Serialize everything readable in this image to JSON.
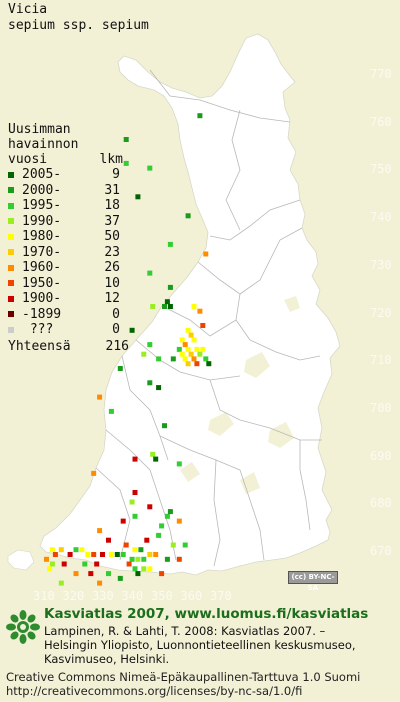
{
  "species": {
    "genus": "Vicia",
    "name": "sepium ssp. sepium"
  },
  "legend": {
    "title_lines": [
      "Uusimman",
      "havainnon"
    ],
    "col_year": "vuosi",
    "col_count": "lkm",
    "rows": [
      {
        "label": "2005-",
        "count": "9",
        "color": "#006400"
      },
      {
        "label": "2000-",
        "count": "31",
        "color": "#1a9b1a"
      },
      {
        "label": "1995-",
        "count": "18",
        "color": "#33cc33"
      },
      {
        "label": "1990-",
        "count": "37",
        "color": "#99ee22"
      },
      {
        "label": "1980-",
        "count": "50",
        "color": "#ffff00"
      },
      {
        "label": "1970-",
        "count": "23",
        "color": "#ffcc00"
      },
      {
        "label": "1960-",
        "count": "26",
        "color": "#ff8c00"
      },
      {
        "label": "1950-",
        "count": "10",
        "color": "#ee4400"
      },
      {
        "label": "1900-",
        "count": "12",
        "color": "#cc0000"
      },
      {
        "label": "-1899",
        "count": "0",
        "color": "#660000"
      },
      {
        "label": " ???",
        "count": "0",
        "color": "#cccccc"
      }
    ],
    "total_label": "Yhteensä",
    "total_count": "216"
  },
  "axes": {
    "y_ticks": [
      "770",
      "760",
      "750",
      "740",
      "730",
      "720",
      "710",
      "700",
      "690",
      "680",
      "670"
    ],
    "x_ticks": [
      "310",
      "320",
      "330",
      "340",
      "350",
      "360",
      "370"
    ]
  },
  "grid_squares": {
    "units": "10 km grid cells (N 670-770, E 310-370)",
    "observations": [
      {
        "e": 362,
        "n": 762,
        "cat": 1
      },
      {
        "e": 337,
        "n": 757,
        "cat": 1
      },
      {
        "e": 337,
        "n": 752,
        "cat": 2
      },
      {
        "e": 345,
        "n": 751,
        "cat": 2
      },
      {
        "e": 341,
        "n": 745,
        "cat": 0
      },
      {
        "e": 358,
        "n": 741,
        "cat": 1
      },
      {
        "e": 352,
        "n": 735,
        "cat": 2
      },
      {
        "e": 364,
        "n": 733,
        "cat": 6
      },
      {
        "e": 345,
        "n": 729,
        "cat": 2
      },
      {
        "e": 352,
        "n": 726,
        "cat": 1
      },
      {
        "e": 351,
        "n": 723,
        "cat": 0
      },
      {
        "e": 350,
        "n": 722,
        "cat": 1
      },
      {
        "e": 352,
        "n": 722,
        "cat": 0
      },
      {
        "e": 346,
        "n": 722,
        "cat": 3
      },
      {
        "e": 360,
        "n": 722,
        "cat": 4
      },
      {
        "e": 362,
        "n": 721,
        "cat": 6
      },
      {
        "e": 363,
        "n": 718,
        "cat": 7
      },
      {
        "e": 358,
        "n": 717,
        "cat": 4
      },
      {
        "e": 359,
        "n": 716,
        "cat": 5
      },
      {
        "e": 360,
        "n": 715,
        "cat": 4
      },
      {
        "e": 356,
        "n": 715,
        "cat": 4
      },
      {
        "e": 357,
        "n": 714,
        "cat": 6
      },
      {
        "e": 355,
        "n": 713,
        "cat": 2
      },
      {
        "e": 358,
        "n": 713,
        "cat": 4
      },
      {
        "e": 361,
        "n": 713,
        "cat": 4
      },
      {
        "e": 363,
        "n": 713,
        "cat": 4
      },
      {
        "e": 356,
        "n": 712,
        "cat": 4
      },
      {
        "e": 359,
        "n": 712,
        "cat": 5
      },
      {
        "e": 362,
        "n": 712,
        "cat": 3
      },
      {
        "e": 357,
        "n": 711,
        "cat": 4
      },
      {
        "e": 360,
        "n": 711,
        "cat": 6
      },
      {
        "e": 364,
        "n": 711,
        "cat": 2
      },
      {
        "e": 353,
        "n": 711,
        "cat": 1
      },
      {
        "e": 358,
        "n": 710,
        "cat": 5
      },
      {
        "e": 361,
        "n": 710,
        "cat": 7
      },
      {
        "e": 365,
        "n": 710,
        "cat": 0
      },
      {
        "e": 339,
        "n": 717,
        "cat": 0
      },
      {
        "e": 345,
        "n": 714,
        "cat": 2
      },
      {
        "e": 343,
        "n": 712,
        "cat": 3
      },
      {
        "e": 348,
        "n": 711,
        "cat": 2
      },
      {
        "e": 335,
        "n": 709,
        "cat": 1
      },
      {
        "e": 345,
        "n": 706,
        "cat": 1
      },
      {
        "e": 348,
        "n": 705,
        "cat": 0
      },
      {
        "e": 328,
        "n": 703,
        "cat": 6
      },
      {
        "e": 332,
        "n": 700,
        "cat": 2
      },
      {
        "e": 350,
        "n": 697,
        "cat": 1
      },
      {
        "e": 346,
        "n": 691,
        "cat": 3
      },
      {
        "e": 347,
        "n": 690,
        "cat": 0
      },
      {
        "e": 340,
        "n": 690,
        "cat": 8
      },
      {
        "e": 355,
        "n": 689,
        "cat": 2
      },
      {
        "e": 326,
        "n": 687,
        "cat": 6
      },
      {
        "e": 340,
        "n": 683,
        "cat": 8
      },
      {
        "e": 339,
        "n": 681,
        "cat": 3
      },
      {
        "e": 345,
        "n": 680,
        "cat": 8
      },
      {
        "e": 351,
        "n": 678,
        "cat": 2
      },
      {
        "e": 352,
        "n": 679,
        "cat": 1
      },
      {
        "e": 340,
        "n": 678,
        "cat": 2
      },
      {
        "e": 349,
        "n": 676,
        "cat": 2
      },
      {
        "e": 355,
        "n": 677,
        "cat": 6
      },
      {
        "e": 336,
        "n": 677,
        "cat": 8
      },
      {
        "e": 328,
        "n": 675,
        "cat": 6
      },
      {
        "e": 348,
        "n": 674,
        "cat": 2
      },
      {
        "e": 344,
        "n": 673,
        "cat": 8
      },
      {
        "e": 331,
        "n": 673,
        "cat": 8
      },
      {
        "e": 353,
        "n": 672,
        "cat": 3
      },
      {
        "e": 357,
        "n": 672,
        "cat": 2
      },
      {
        "e": 337,
        "n": 672,
        "cat": 7
      },
      {
        "e": 340,
        "n": 671,
        "cat": 4
      },
      {
        "e": 342,
        "n": 671,
        "cat": 1
      },
      {
        "e": 320,
        "n": 671,
        "cat": 2
      },
      {
        "e": 312,
        "n": 671,
        "cat": 4
      },
      {
        "e": 313,
        "n": 670,
        "cat": 7
      },
      {
        "e": 315,
        "n": 671,
        "cat": 5
      },
      {
        "e": 318,
        "n": 670,
        "cat": 8
      },
      {
        "e": 322,
        "n": 671,
        "cat": 4
      },
      {
        "e": 324,
        "n": 670,
        "cat": 4
      },
      {
        "e": 326,
        "n": 670,
        "cat": 7
      },
      {
        "e": 329,
        "n": 670,
        "cat": 8
      },
      {
        "e": 332,
        "n": 670,
        "cat": 4
      },
      {
        "e": 334,
        "n": 670,
        "cat": 0
      },
      {
        "e": 336,
        "n": 670,
        "cat": 2
      },
      {
        "e": 339,
        "n": 669,
        "cat": 2
      },
      {
        "e": 341,
        "n": 669,
        "cat": 3
      },
      {
        "e": 343,
        "n": 669,
        "cat": 2
      },
      {
        "e": 345,
        "n": 670,
        "cat": 5
      },
      {
        "e": 347,
        "n": 670,
        "cat": 6
      },
      {
        "e": 351,
        "n": 669,
        "cat": 1
      },
      {
        "e": 355,
        "n": 669,
        "cat": 7
      },
      {
        "e": 310,
        "n": 669,
        "cat": 6
      },
      {
        "e": 312,
        "n": 668,
        "cat": 3
      },
      {
        "e": 311,
        "n": 667,
        "cat": 4
      },
      {
        "e": 316,
        "n": 668,
        "cat": 8
      },
      {
        "e": 323,
        "n": 668,
        "cat": 2
      },
      {
        "e": 327,
        "n": 668,
        "cat": 8
      },
      {
        "e": 338,
        "n": 668,
        "cat": 7
      },
      {
        "e": 340,
        "n": 667,
        "cat": 2
      },
      {
        "e": 343,
        "n": 667,
        "cat": 3
      },
      {
        "e": 345,
        "n": 667,
        "cat": 4
      },
      {
        "e": 320,
        "n": 666,
        "cat": 6
      },
      {
        "e": 325,
        "n": 666,
        "cat": 8
      },
      {
        "e": 331,
        "n": 666,
        "cat": 2
      },
      {
        "e": 335,
        "n": 665,
        "cat": 1
      },
      {
        "e": 341,
        "n": 666,
        "cat": 0
      },
      {
        "e": 349,
        "n": 666,
        "cat": 7
      },
      {
        "e": 315,
        "n": 664,
        "cat": 3
      },
      {
        "e": 328,
        "n": 664,
        "cat": 6
      }
    ]
  },
  "cc_badge": "(cc) BY-NC-SA",
  "footer": {
    "title": "Kasviatlas 2007, www.luomus.fi/kasviatlas",
    "citation": [
      "Lampinen, R. & Lahti, T. 2008: Kasviatlas 2007. –",
      "Helsingin Yliopisto, Luonnontieteellinen keskusmuseo,",
      "Kasvimuseo, Helsinki."
    ],
    "license": [
      "Creative Commons Nimeä-Epäkaupallinen-Tarttuva 1.0 Suomi",
      "http://creativecommons.org/licenses/by-nc-sa/1.0/fi"
    ]
  },
  "colors": {
    "background": "#f2f1d6",
    "land": "#ffffff",
    "border": "#b8b8b8",
    "title_green": "#1c6e1c"
  }
}
